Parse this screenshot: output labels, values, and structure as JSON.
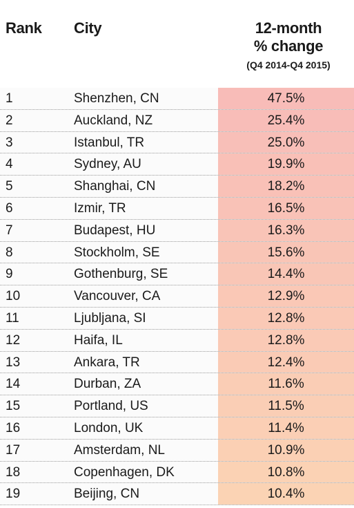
{
  "header": {
    "rank_label": "Rank",
    "city_label": "City",
    "change_line1": "12-month",
    "change_line2": "% change",
    "change_period": "(Q4 2014-Q4 2015)"
  },
  "colors": {
    "top_value": "#f8bcb8",
    "bottom_value": "#fbd3b4"
  },
  "rows": [
    {
      "rank": "1",
      "city": "Shenzhen, CN",
      "change": "47.5%"
    },
    {
      "rank": "2",
      "city": "Auckland, NZ",
      "change": "25.4%"
    },
    {
      "rank": "3",
      "city": "Istanbul, TR",
      "change": "25.0%"
    },
    {
      "rank": "4",
      "city": "Sydney, AU",
      "change": "19.9%"
    },
    {
      "rank": "5",
      "city": "Shanghai, CN",
      "change": "18.2%"
    },
    {
      "rank": "6",
      "city": "Izmir, TR",
      "change": "16.5%"
    },
    {
      "rank": "7",
      "city": "Budapest, HU",
      "change": "16.3%"
    },
    {
      "rank": "8",
      "city": "Stockholm, SE",
      "change": "15.6%"
    },
    {
      "rank": "9",
      "city": "Gothenburg, SE",
      "change": "14.4%"
    },
    {
      "rank": "10",
      "city": "Vancouver, CA",
      "change": "12.9%"
    },
    {
      "rank": "11",
      "city": "Ljubljana, SI",
      "change": "12.8%"
    },
    {
      "rank": "12",
      "city": "Haifa, IL",
      "change": "12.8%"
    },
    {
      "rank": "13",
      "city": "Ankara, TR",
      "change": "12.4%"
    },
    {
      "rank": "14",
      "city": "Durban, ZA",
      "change": "11.6%"
    },
    {
      "rank": "15",
      "city": "Portland, US",
      "change": "11.5%"
    },
    {
      "rank": "16",
      "city": "London, UK",
      "change": "11.4%"
    },
    {
      "rank": "17",
      "city": "Amsterdam, NL",
      "change": "10.9%"
    },
    {
      "rank": "18",
      "city": "Copenhagen, DK",
      "change": "10.8%"
    },
    {
      "rank": "19",
      "city": "Beijing, CN",
      "change": "10.4%"
    }
  ]
}
